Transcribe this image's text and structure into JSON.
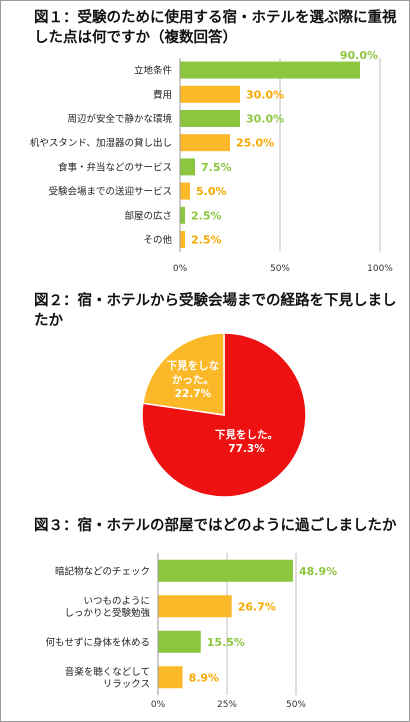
{
  "colors": {
    "green": "#8cc63f",
    "orange": "#fbb829",
    "red": "#ee1111",
    "grid": "#bfbfbf",
    "green_text": "#8cc63f",
    "orange_text": "#f5a800"
  },
  "chart_data": [
    {
      "type": "bar",
      "orientation": "horizontal",
      "title": "図１：受験のために使用する宿・ホテルを選ぶ際に重視\nした点は何ですか（複数回答）",
      "categories": [
        "立地条件",
        "費用",
        "周辺が安全で静かな環境",
        "机やスタンド、加湿器の貸し出し",
        "食事・弁当などのサービス",
        "受験会場までの送迎サービス",
        "部屋の広さ",
        "その他"
      ],
      "values": [
        90.0,
        30.0,
        30.0,
        25.0,
        7.5,
        5.0,
        2.5,
        2.5
      ],
      "value_labels": [
        "90.0%",
        "30.0%",
        "30.0%",
        "25.0%",
        "7.5%",
        "5.0%",
        "2.5%",
        "2.5%"
      ],
      "bar_colors": [
        "green",
        "orange",
        "green",
        "orange",
        "green",
        "orange",
        "green",
        "orange"
      ],
      "xlim": [
        0,
        100
      ],
      "xticks": [
        "0%",
        "50%",
        "100%"
      ],
      "grid": true
    },
    {
      "type": "pie",
      "title": "図２：宿・ホテルから受験会場までの経路を下見しましたか",
      "slices": [
        {
          "label_lines": [
            "下見をした。",
            "77.3%"
          ],
          "value": 77.3,
          "color": "red"
        },
        {
          "label_lines": [
            "下見をしな",
            "かった。",
            "22.7%"
          ],
          "value": 22.7,
          "color": "orange"
        }
      ]
    },
    {
      "type": "bar",
      "orientation": "horizontal",
      "title": "図３：宿・ホテルの部屋ではどのように過ごしましたか",
      "categories": [
        [
          "暗記物などのチェック"
        ],
        [
          "いつものように",
          "しっかりと受験勉強"
        ],
        [
          "何もせずに身体を休める"
        ],
        [
          "音楽を聴くなどして",
          "リラックス"
        ]
      ],
      "values": [
        48.9,
        26.7,
        15.5,
        8.9
      ],
      "value_labels": [
        "48.9%",
        "26.7%",
        "15.5%",
        "8.9%"
      ],
      "bar_colors": [
        "green",
        "orange",
        "green",
        "orange"
      ],
      "xlim": [
        0,
        50
      ],
      "xticks": [
        "0%",
        "25%",
        "50%"
      ],
      "grid": true
    }
  ]
}
